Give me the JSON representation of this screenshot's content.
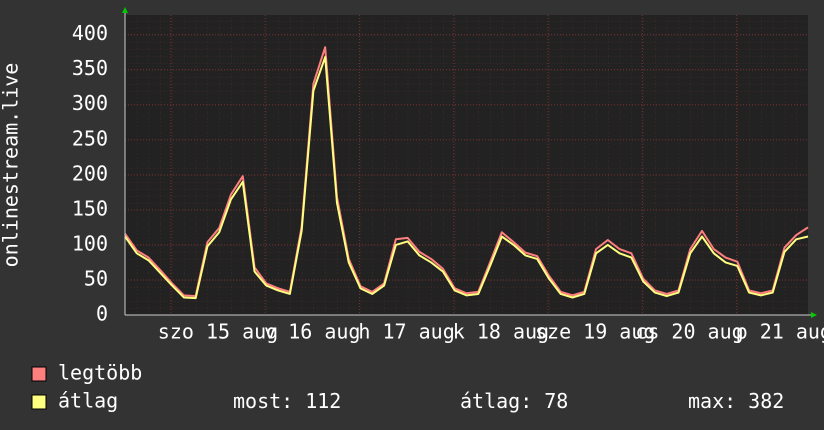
{
  "chart_data": {
    "type": "line",
    "y_label": "onlinestream.live",
    "xlabels": [
      "szo 15 aug",
      "v 16 aug",
      "h 17 aug",
      "k 18 aug",
      "sze 19 aug",
      "cs 20 aug",
      "p 21 aug"
    ],
    "ylim": [
      0,
      428
    ],
    "yticks": [
      0,
      50,
      100,
      150,
      200,
      250,
      300,
      350,
      400
    ],
    "grid": true,
    "series": [
      {
        "name": "legtöbb",
        "color": "#ff7f7f",
        "values": [
          116,
          92,
          82,
          64,
          45,
          28,
          27,
          104,
          124,
          172,
          198,
          68,
          45,
          38,
          33,
          126,
          330,
          382,
          168,
          80,
          41,
          33,
          45,
          108,
          110,
          90,
          80,
          66,
          38,
          31,
          33,
          75,
          118,
          104,
          89,
          84,
          56,
          33,
          28,
          33,
          94,
          107,
          94,
          88,
          52,
          35,
          30,
          35,
          94,
          120,
          94,
          82,
          76,
          35,
          31,
          35,
          96,
          114,
          125
        ]
      },
      {
        "name": "átlag",
        "color": "#ffff80",
        "values": [
          112,
          88,
          78,
          60,
          42,
          25,
          24,
          98,
          118,
          165,
          190,
          62,
          42,
          35,
          30,
          120,
          320,
          368,
          160,
          75,
          38,
          30,
          42,
          100,
          105,
          85,
          75,
          62,
          35,
          28,
          30,
          70,
          112,
          100,
          85,
          80,
          52,
          30,
          25,
          30,
          88,
          100,
          88,
          82,
          48,
          32,
          27,
          32,
          88,
          112,
          88,
          75,
          70,
          32,
          28,
          32,
          90,
          108,
          112
        ]
      }
    ],
    "stats": [
      {
        "label": "most:",
        "value": 112
      },
      {
        "label": "átlag:",
        "value": 78
      },
      {
        "label": "max:",
        "value": 382
      }
    ]
  }
}
